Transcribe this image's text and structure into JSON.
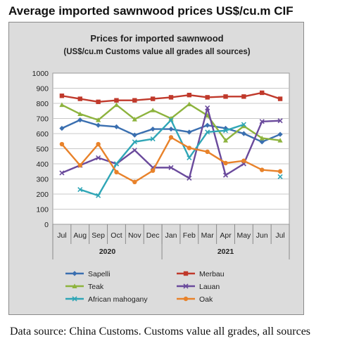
{
  "page": {
    "heading": "Average imported sawnwood prices US$/cu.m CIF",
    "source_note": "Data source: China Customs. Customs value all grades, all sources"
  },
  "chart_data": {
    "type": "line",
    "title": "Prices for imported sawnwood",
    "subtitle": "(US$/cu.m Customs value all grades all sources)",
    "categories": [
      "Jul",
      "Aug",
      "Sep",
      "Oct",
      "Nov",
      "Dec",
      "Jan",
      "Feb",
      "Mar",
      "Apr",
      "May",
      "Jun",
      "Jul"
    ],
    "year_groups": [
      {
        "label": "2020",
        "start": 0,
        "end": 5
      },
      {
        "label": "2021",
        "start": 6,
        "end": 12
      }
    ],
    "ylim": [
      0,
      1000
    ],
    "yticks": [
      0,
      100,
      200,
      300,
      400,
      500,
      600,
      700,
      800,
      900,
      1000
    ],
    "grid": true,
    "legend_position": "bottom",
    "series": [
      {
        "name": "Sapelli",
        "color": "#3a6fb0",
        "marker": "diamond",
        "values": [
          635,
          690,
          655,
          645,
          590,
          630,
          630,
          610,
          655,
          635,
          600,
          545,
          595
        ]
      },
      {
        "name": "Merbau",
        "color": "#c0392b",
        "marker": "square",
        "values": [
          850,
          830,
          810,
          820,
          820,
          830,
          840,
          855,
          840,
          845,
          845,
          870,
          830
        ]
      },
      {
        "name": "Teak",
        "color": "#8db33d",
        "marker": "triangle",
        "values": [
          790,
          730,
          690,
          790,
          695,
          755,
          700,
          795,
          720,
          555,
          650,
          570,
          555
        ]
      },
      {
        "name": "Lauan",
        "color": "#6a4a9c",
        "marker": "x",
        "values": [
          340,
          390,
          440,
          400,
          490,
          375,
          375,
          305,
          770,
          325,
          400,
          680,
          685
        ]
      },
      {
        "name": "African mahogany",
        "color": "#2fa6b6",
        "marker": "x",
        "values": [
          null,
          230,
          190,
          400,
          545,
          565,
          690,
          440,
          610,
          620,
          660,
          null,
          315
        ]
      },
      {
        "name": "Oak",
        "color": "#e8822a",
        "marker": "circle",
        "values": [
          530,
          390,
          530,
          345,
          280,
          355,
          575,
          505,
          480,
          405,
          420,
          360,
          350
        ]
      }
    ]
  }
}
